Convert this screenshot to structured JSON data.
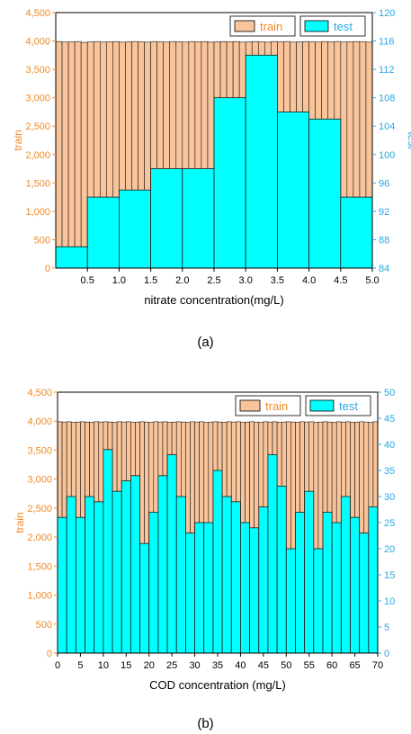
{
  "figure": {
    "caption_a": "(a)",
    "caption_b": "(b)"
  },
  "colors": {
    "train": "#f9c49a",
    "test": "#00ffff",
    "left_axis": "#f08a24",
    "right_axis": "#2aa8e0"
  },
  "chart_data": [
    {
      "type": "bar",
      "xlabel": "nitrate concentration(mg/L)",
      "ylabel": "train",
      "ylabel_right": "test",
      "xlim": [
        0,
        5
      ],
      "ylim": [
        0,
        4500
      ],
      "ylim_right": [
        84,
        120
      ],
      "xticks": [
        0.5,
        1.0,
        1.5,
        2.0,
        2.5,
        3.0,
        3.5,
        4.0,
        4.5,
        5.0
      ],
      "xtick_labels": [
        "0.5",
        "1.0",
        "1.5",
        "2.0",
        "2.5",
        "3.0",
        "3.5",
        "4.0",
        "4.5",
        "5.0"
      ],
      "yticks": [
        0,
        500,
        1000,
        1500,
        2000,
        2500,
        3000,
        3500,
        4000,
        4500
      ],
      "ytick_labels": [
        "0",
        "500",
        "1,000",
        "1,500",
        "2,000",
        "2,500",
        "3,000",
        "3,500",
        "4,000",
        "4,500"
      ],
      "yticks_right": [
        84,
        88,
        92,
        96,
        100,
        104,
        108,
        112,
        116,
        120
      ],
      "ytick_labels_right": [
        "84",
        "88",
        "92",
        "96",
        "100",
        "104",
        "108",
        "112",
        "116",
        "120"
      ],
      "legend": {
        "placement": "top-right",
        "entries": [
          "train",
          "test"
        ]
      },
      "series": [
        {
          "name": "train",
          "axis": "left",
          "bin_width": 0.1,
          "bins_x": [
            0,
            0.1,
            0.2,
            0.3,
            0.4,
            0.5,
            0.6,
            0.7,
            0.8,
            0.9,
            1.0,
            1.1,
            1.2,
            1.3,
            1.4,
            1.5,
            1.6,
            1.7,
            1.8,
            1.9,
            2.0,
            2.1,
            2.2,
            2.3,
            2.4,
            2.5,
            2.6,
            2.7,
            2.8,
            2.9,
            3.0,
            3.1,
            3.2,
            3.3,
            3.4,
            3.5,
            3.6,
            3.7,
            3.8,
            3.9,
            4.0,
            4.1,
            4.2,
            4.3,
            4.4,
            4.5,
            4.6,
            4.7,
            4.8,
            4.9
          ],
          "values": [
            3990,
            3980,
            3985,
            3990,
            3975,
            3985,
            3990,
            3980,
            3985,
            3990,
            3980,
            3985,
            3990,
            3985,
            3980,
            3990,
            3985,
            3980,
            3990,
            3985,
            3980,
            3990,
            3985,
            3990,
            3980,
            3985,
            3990,
            3985,
            3990,
            3980,
            3985,
            3990,
            3985,
            3980,
            3990,
            3985,
            3990,
            3980,
            3985,
            3990,
            3985,
            3980,
            3990,
            3985,
            3990,
            3980,
            3985,
            3990,
            3985,
            3980
          ]
        },
        {
          "name": "test",
          "axis": "right",
          "bin_width": 0.5,
          "bins_x": [
            0,
            0.5,
            1.0,
            1.5,
            2.0,
            2.5,
            3.0,
            3.5,
            4.0,
            4.5
          ],
          "values": [
            87,
            94,
            95,
            98,
            98,
            108,
            114,
            106,
            105,
            94
          ]
        }
      ]
    },
    {
      "type": "bar",
      "xlabel": "COD concentration (mg/L)",
      "ylabel": "train",
      "ylabel_right": "test",
      "xlim": [
        0,
        70
      ],
      "ylim": [
        0,
        4500
      ],
      "ylim_right": [
        0,
        50
      ],
      "xticks": [
        0,
        5,
        10,
        15,
        20,
        25,
        30,
        35,
        40,
        45,
        50,
        55,
        60,
        65,
        70
      ],
      "xtick_labels": [
        "0",
        "5",
        "10",
        "15",
        "20",
        "25",
        "30",
        "35",
        "40",
        "45",
        "50",
        "55",
        "60",
        "65",
        "70"
      ],
      "yticks": [
        0,
        500,
        1000,
        1500,
        2000,
        2500,
        3000,
        3500,
        4000,
        4500
      ],
      "ytick_labels": [
        "0",
        "500",
        "1,000",
        "1,500",
        "2,000",
        "2,500",
        "3,000",
        "3,500",
        "4,000",
        "4,500"
      ],
      "yticks_right": [
        0,
        5,
        10,
        15,
        20,
        25,
        30,
        35,
        40,
        45,
        50
      ],
      "ytick_labels_right": [
        "0",
        "5",
        "10",
        "15",
        "20",
        "25",
        "30",
        "35",
        "40",
        "45",
        "50"
      ],
      "legend": {
        "placement": "top-right",
        "entries": [
          "train",
          "test"
        ]
      },
      "series": [
        {
          "name": "train",
          "axis": "left",
          "bin_width": 1,
          "bins_x": [
            0,
            1,
            2,
            3,
            4,
            5,
            6,
            7,
            8,
            9,
            10,
            11,
            12,
            13,
            14,
            15,
            16,
            17,
            18,
            19,
            20,
            21,
            22,
            23,
            24,
            25,
            26,
            27,
            28,
            29,
            30,
            31,
            32,
            33,
            34,
            35,
            36,
            37,
            38,
            39,
            40,
            41,
            42,
            43,
            44,
            45,
            46,
            47,
            48,
            49,
            50,
            51,
            52,
            53,
            54,
            55,
            56,
            57,
            58,
            59,
            60,
            61,
            62,
            63,
            64,
            65,
            66,
            67,
            68,
            69
          ],
          "values": [
            3990,
            3985,
            3990,
            3980,
            3985,
            3990,
            3985,
            3980,
            3990,
            3985,
            3990,
            3985,
            3980,
            3990,
            3985,
            3990,
            3980,
            3985,
            3990,
            3985,
            3980,
            3990,
            3985,
            3990,
            3980,
            3985,
            3990,
            3985,
            3980,
            3990,
            3985,
            3990,
            3980,
            3985,
            3990,
            3985,
            3980,
            3990,
            3985,
            3990,
            3980,
            3985,
            3990,
            3985,
            3980,
            3990,
            3985,
            3990,
            3980,
            3985,
            3990,
            3985,
            3980,
            3990,
            3985,
            3990,
            3980,
            3985,
            3990,
            3985,
            3980,
            3990,
            3985,
            3990,
            3980,
            3985,
            3990,
            3985,
            3980,
            3990
          ]
        },
        {
          "name": "test",
          "axis": "right",
          "bin_width": 2,
          "bins_x": [
            0,
            2,
            4,
            6,
            8,
            10,
            12,
            14,
            16,
            18,
            20,
            22,
            24,
            26,
            28,
            30,
            32,
            34,
            36,
            38,
            40,
            42,
            44,
            46,
            48,
            50,
            52,
            54,
            56,
            58,
            60,
            62,
            64,
            66,
            68
          ],
          "values": [
            26,
            30,
            26,
            30,
            29,
            39,
            31,
            33,
            34,
            21,
            27,
            34,
            38,
            30,
            23,
            25,
            25,
            35,
            30,
            29,
            25,
            24,
            28,
            38,
            32,
            20,
            27,
            31,
            20,
            27,
            25,
            30,
            26,
            23,
            28
          ]
        }
      ]
    }
  ]
}
